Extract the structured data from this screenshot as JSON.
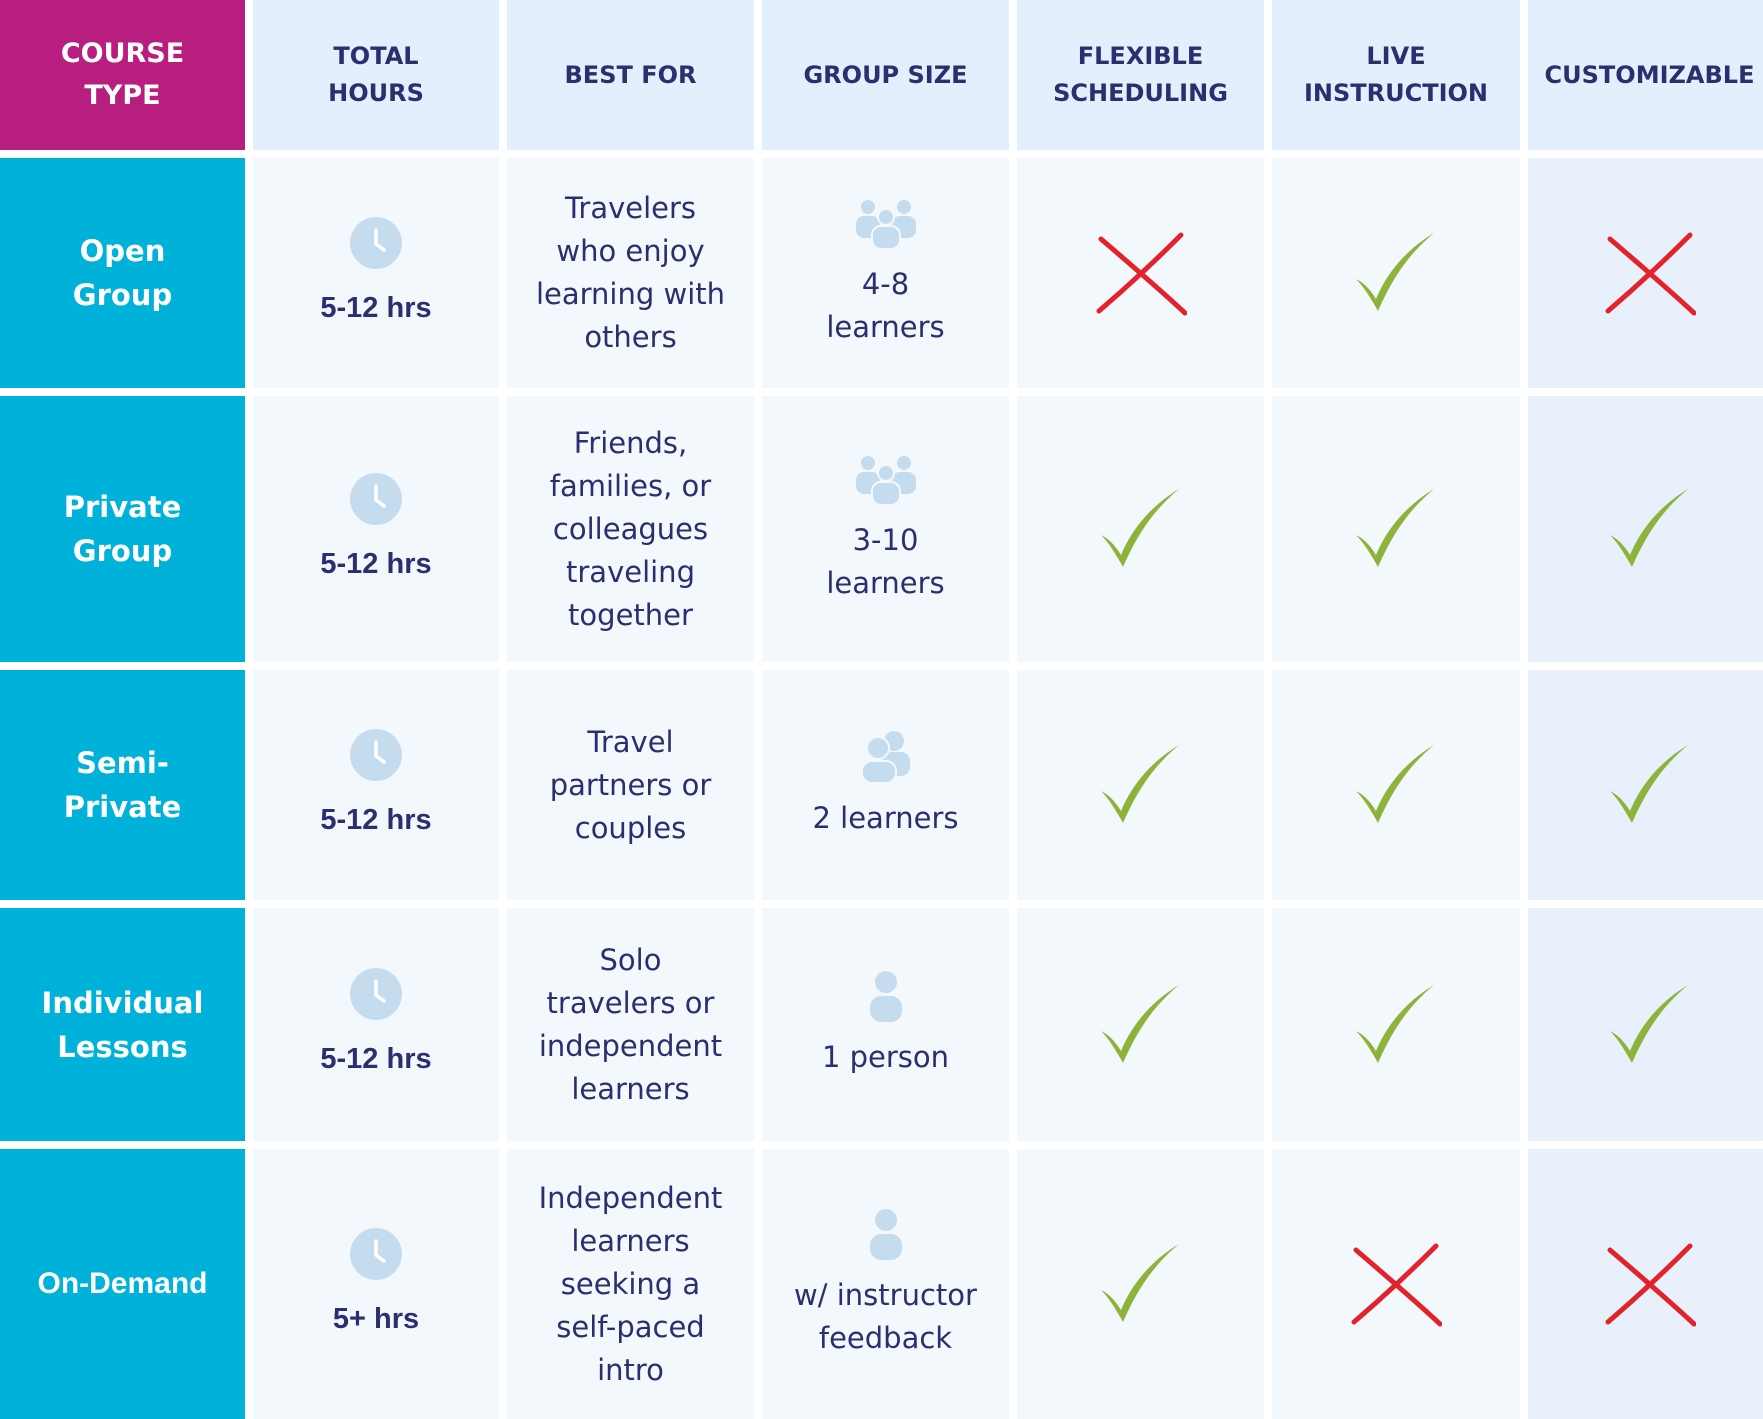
{
  "headers": {
    "course_type": "COURSE\nTYPE",
    "total_hours": "TOTAL\nHOURS",
    "best_for": "BEST FOR",
    "group_size": "GROUP SIZE",
    "flexible": "FLEXIBLE\nSCHEDULING",
    "live": "LIVE\nINSTRUCTION",
    "customizable": "CUSTOMIZABLE"
  },
  "rows": [
    {
      "type": "Open\nGroup",
      "hours": "5-12 hrs",
      "best_for": "Travelers\nwho enjoy\nlearning with\nothers",
      "size": "4-8\nlearners",
      "size_icon": "group-icon",
      "flexible": "cross",
      "live": "check",
      "customizable": "cross"
    },
    {
      "type": "Private\nGroup",
      "hours": "5-12 hrs",
      "best_for": "Friends,\nfamilies, or\ncolleagues\ntraveling\ntogether",
      "size": "3-10\nlearners",
      "size_icon": "group-icon",
      "flexible": "check",
      "live": "check",
      "customizable": "check"
    },
    {
      "type": "Semi-\nPrivate",
      "hours": "5-12 hrs",
      "best_for": "Travel\npartners or\ncouples",
      "size": "2 learners",
      "size_icon": "pair-icon",
      "flexible": "check",
      "live": "check",
      "customizable": "check"
    },
    {
      "type": "Individual\nLessons",
      "hours": "5-12 hrs",
      "best_for": "Solo\ntravelers or\nindependent\nlearners",
      "size": "1 person",
      "size_icon": "person-icon",
      "flexible": "check",
      "live": "check",
      "customizable": "check"
    },
    {
      "type": "On-Demand",
      "hours": "5+ hrs",
      "best_for": "Independent\nlearners\nseeking a\nself-paced\nintro",
      "size": "w/ instructor\nfeedback",
      "size_icon": "person-icon",
      "flexible": "check",
      "live": "cross",
      "customizable": "cross"
    }
  ],
  "colors": {
    "course_type_header": "#b81e80",
    "row_header": "#00b1d9",
    "header_bg": "#e3effc",
    "body_bg": "#f3f8fd",
    "text": "#2c2f6d",
    "check": "#8db33a",
    "cross": "#e3232c",
    "icon": "#c4dcee"
  }
}
